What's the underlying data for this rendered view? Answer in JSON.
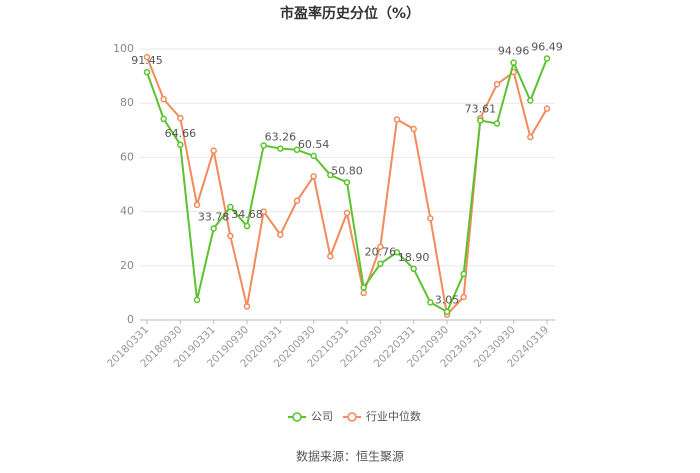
{
  "chart_data": {
    "type": "line",
    "title": "市盈率历史分位（%）",
    "categories": [
      "20180331",
      null,
      "20180930",
      null,
      "20190331",
      null,
      "20190930",
      null,
      "20200331",
      null,
      "20200930",
      null,
      "20210331",
      null,
      "20210930",
      null,
      "20220331",
      null,
      "20220930",
      null,
      "20230331",
      null,
      "20230930",
      null,
      "20240319"
    ],
    "series": [
      {
        "name": "公司",
        "color": "#5cc22e",
        "values": [
          91.45,
          74.2,
          64.66,
          7.4,
          33.78,
          41.7,
          34.68,
          64.4,
          63.26,
          62.8,
          60.54,
          53.5,
          50.8,
          12,
          20.76,
          25,
          18.9,
          6.5,
          3.05,
          17,
          73.61,
          72.5,
          94.96,
          81,
          96.49
        ],
        "value_labels": [
          "91.45",
          null,
          "64.66",
          null,
          "33.78",
          null,
          "34.68",
          null,
          "63.26",
          null,
          "60.54",
          null,
          "50.80",
          null,
          "20.76",
          null,
          "18.90",
          null,
          "3.05",
          null,
          "73.61",
          null,
          "94.96",
          null,
          "96.49"
        ]
      },
      {
        "name": "行业中位数",
        "color": "#f28a5c",
        "values": [
          97,
          81.5,
          74.5,
          42.5,
          62.5,
          31,
          5,
          40,
          31.5,
          44,
          53,
          23.5,
          39.5,
          10,
          27,
          74,
          70.5,
          37.5,
          2,
          8.5,
          74.5,
          87,
          91.5,
          67.5,
          78
        ]
      }
    ],
    "ylim": [
      0,
      100
    ],
    "yticks": [
      0,
      20,
      40,
      60,
      80,
      100
    ],
    "grid": true,
    "legend": "bottom",
    "source": "数据来源：恒生聚源"
  }
}
